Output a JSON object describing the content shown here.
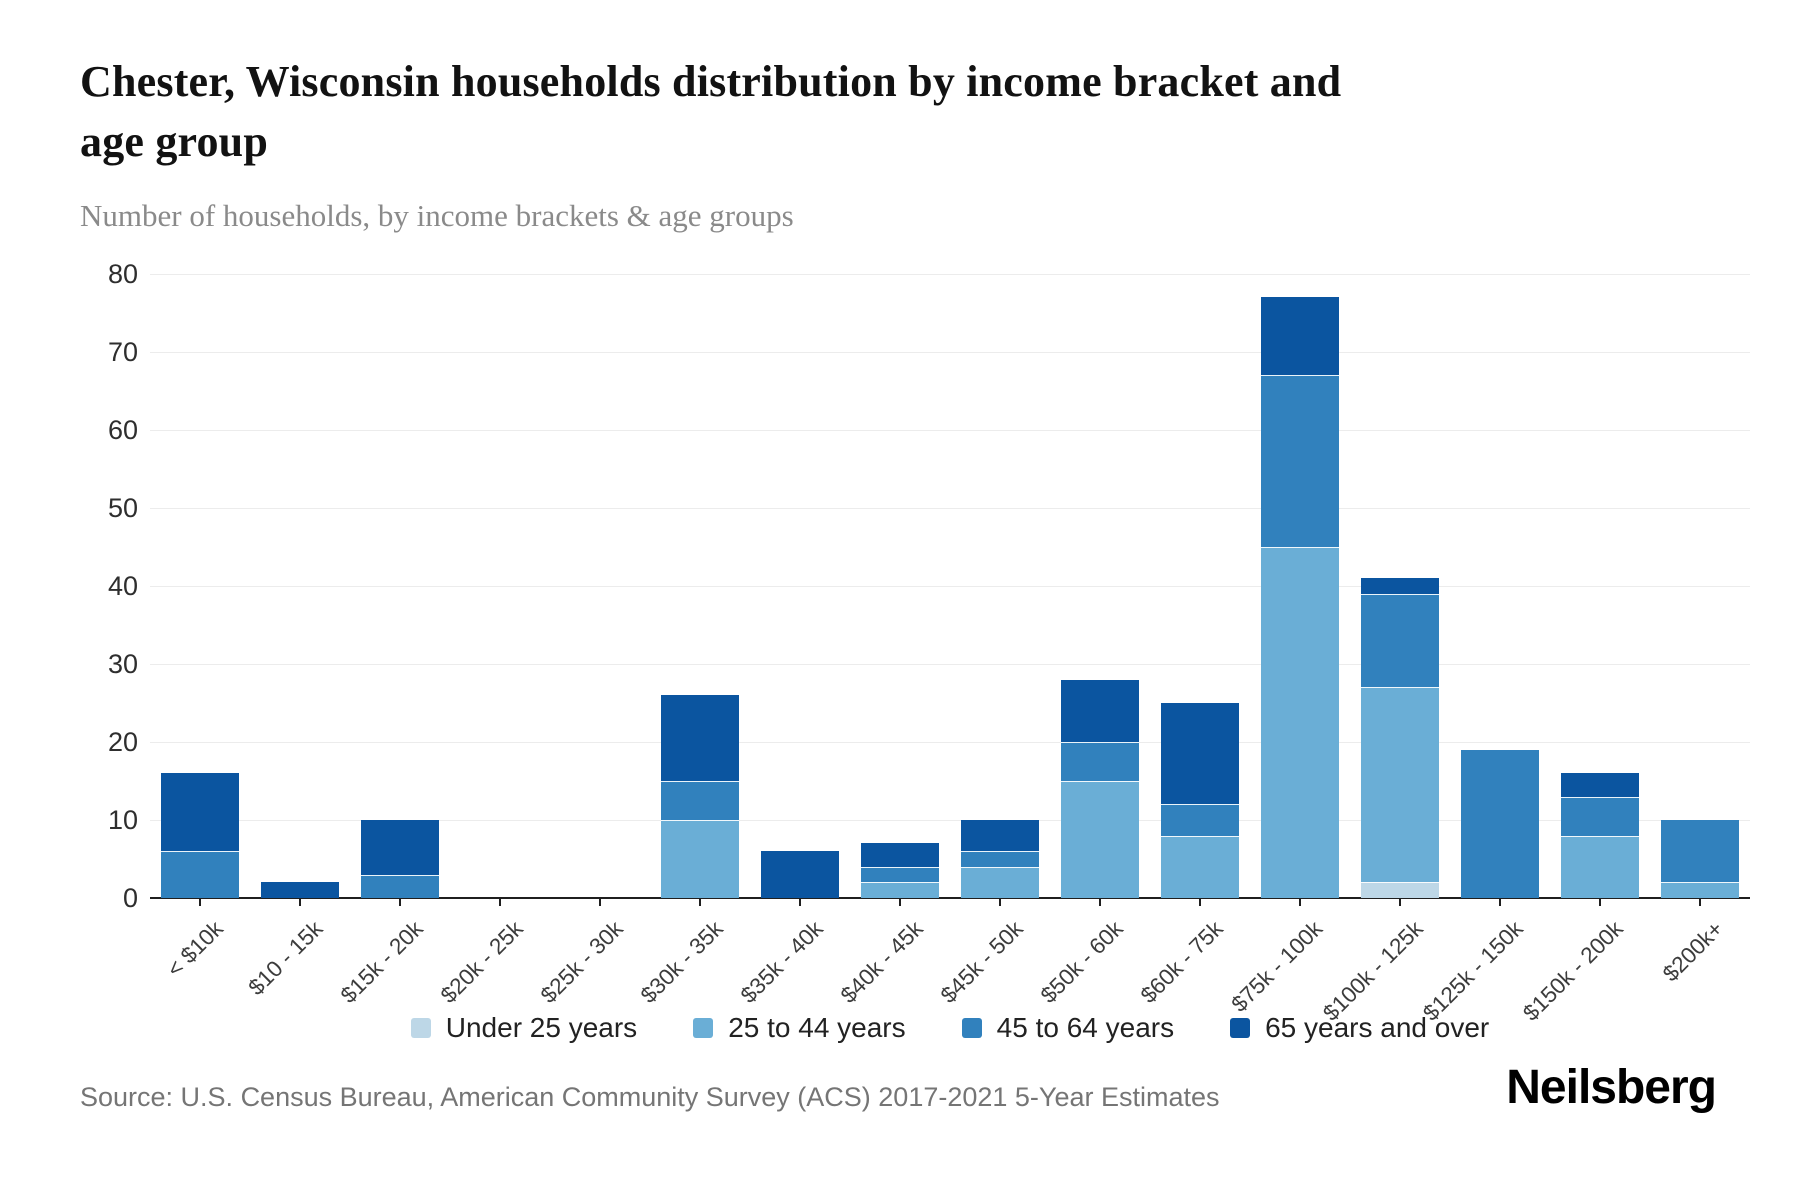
{
  "header": {
    "title_line1": "Chester, Wisconsin households distribution by income bracket and",
    "title_line2": "age group",
    "subtitle": "Number of households, by income brackets & age groups"
  },
  "chart_data": {
    "type": "bar",
    "stacked": true,
    "title": "Chester, Wisconsin households distribution by income bracket and age group",
    "subtitle": "Number of households, by income brackets & age groups",
    "xlabel": "",
    "ylabel": "Number of households",
    "ylim": [
      0,
      80
    ],
    "yticks": [
      0,
      10,
      20,
      30,
      40,
      50,
      60,
      70,
      80
    ],
    "grid": "horizontal",
    "legend_position": "bottom",
    "categories": [
      "< $10k",
      "$10 - 15k",
      "$15k - 20k",
      "$20k - 25k",
      "$25k - 30k",
      "$30k - 35k",
      "$35k - 40k",
      "$40k - 45k",
      "$45k - 50k",
      "$50k - 60k",
      "$60k - 75k",
      "$75k - 100k",
      "$100k - 125k",
      "$125k - 150k",
      "$150k - 200k",
      "$200k+"
    ],
    "series": [
      {
        "name": "Under 25 years",
        "color": "#bdd7e7",
        "values": [
          0,
          0,
          0,
          0,
          0,
          0,
          0,
          0,
          0,
          0,
          0,
          0,
          2,
          0,
          0,
          0
        ]
      },
      {
        "name": "25 to 44 years",
        "color": "#6aaed6",
        "values": [
          0,
          0,
          0,
          0,
          0,
          10,
          0,
          2,
          4,
          15,
          8,
          45,
          25,
          0,
          8,
          2
        ]
      },
      {
        "name": "45 to 64 years",
        "color": "#3181bd",
        "values": [
          6,
          0,
          3,
          0,
          0,
          5,
          0,
          2,
          2,
          5,
          4,
          22,
          12,
          19,
          5,
          8
        ]
      },
      {
        "name": "65 years and over",
        "color": "#0b55a0",
        "values": [
          10,
          2,
          7,
          0,
          0,
          11,
          6,
          3,
          4,
          8,
          13,
          10,
          2,
          0,
          3,
          0
        ]
      }
    ],
    "totals": [
      16,
      2,
      10,
      0,
      0,
      26,
      6,
      7,
      10,
      28,
      25,
      77,
      41,
      19,
      16,
      10
    ]
  },
  "footer": {
    "source": "Source: U.S. Census Bureau, American Community Survey (ACS) 2017-2021 5-Year Estimates",
    "brand": "Neilsberg"
  }
}
